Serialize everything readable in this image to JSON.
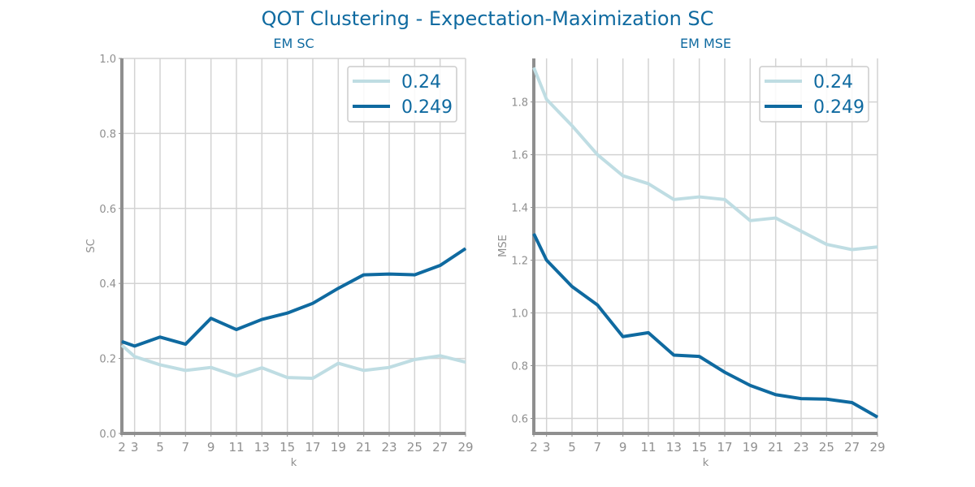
{
  "figure": {
    "title": "QOT Clustering - Expectation-Maximization SC"
  },
  "colors": {
    "series_light": "#bfdde3",
    "series_dark": "#0f6aa0",
    "grid": "#d3d3d3",
    "axis": "#8f8f8f",
    "title": "#0f6aa0"
  },
  "chart_data": [
    {
      "type": "line",
      "title": "EM SC",
      "xlabel": "k",
      "ylabel": "SC",
      "x": [
        2,
        3,
        5,
        7,
        9,
        11,
        13,
        15,
        17,
        19,
        21,
        23,
        25,
        27,
        29
      ],
      "xticks": [
        "2",
        "3",
        "5",
        "7",
        "9",
        "11",
        "13",
        "15",
        "17",
        "19",
        "21",
        "23",
        "25",
        "27",
        "29"
      ],
      "xlim": [
        2,
        29
      ],
      "ylim": [
        0,
        1.0
      ],
      "yticks": [
        "0.0",
        "0.2",
        "0.4",
        "0.6",
        "0.8",
        "1.0"
      ],
      "legend": "top-right",
      "grid": true,
      "series": [
        {
          "name": "0.24",
          "color": "#bfdde3",
          "values": [
            0.235,
            0.205,
            0.183,
            0.168,
            0.176,
            0.153,
            0.175,
            0.149,
            0.147,
            0.187,
            0.168,
            0.176,
            0.197,
            0.207,
            0.19
          ]
        },
        {
          "name": "0.249",
          "color": "#0f6aa0",
          "values": [
            0.245,
            0.233,
            0.257,
            0.238,
            0.307,
            0.277,
            0.304,
            0.321,
            0.347,
            0.387,
            0.423,
            0.425,
            0.423,
            0.448,
            0.493
          ]
        }
      ]
    },
    {
      "type": "line",
      "title": "EM MSE",
      "xlabel": "k",
      "ylabel": "MSE",
      "x": [
        2,
        3,
        5,
        7,
        9,
        11,
        13,
        15,
        17,
        19,
        21,
        23,
        25,
        27,
        29
      ],
      "xticks": [
        "2",
        "3",
        "5",
        "7",
        "9",
        "11",
        "13",
        "15",
        "17",
        "19",
        "21",
        "23",
        "25",
        "27",
        "29"
      ],
      "xlim": [
        2,
        29
      ],
      "ylim": [
        0.543,
        1.965
      ],
      "yticks": [
        "0.6",
        "0.8",
        "1.0",
        "1.2",
        "1.4",
        "1.6",
        "1.8"
      ],
      "legend": "top-right",
      "grid": true,
      "series": [
        {
          "name": "0.24",
          "color": "#bfdde3",
          "values": [
            1.93,
            1.81,
            1.71,
            1.6,
            1.52,
            1.49,
            1.43,
            1.44,
            1.43,
            1.35,
            1.36,
            1.31,
            1.26,
            1.24,
            1.25
          ]
        },
        {
          "name": "0.249",
          "color": "#0f6aa0",
          "values": [
            1.3,
            1.2,
            1.1,
            1.03,
            0.91,
            0.925,
            0.84,
            0.835,
            0.775,
            0.725,
            0.69,
            0.675,
            0.673,
            0.66,
            0.605
          ]
        }
      ]
    }
  ]
}
